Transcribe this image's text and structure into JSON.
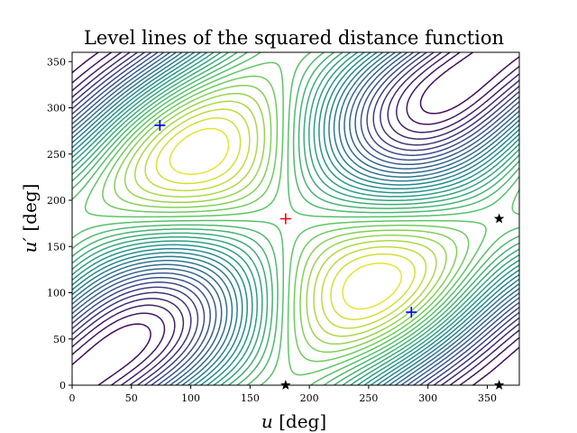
{
  "chart_data": {
    "type": "contour",
    "title": "Level lines of the squared distance function",
    "xlabel": {
      "var": "u",
      "unit": " [deg]"
    },
    "ylabel": {
      "var": "u′",
      "unit": " [deg]"
    },
    "xlim": [
      0,
      377
    ],
    "ylim": [
      0,
      360
    ],
    "xticks": [
      0,
      50,
      100,
      150,
      200,
      250,
      300,
      350
    ],
    "yticks": [
      0,
      50,
      100,
      150,
      200,
      250,
      300,
      350
    ],
    "colormap": [
      "#440154",
      "#3b528b",
      "#21918c",
      "#5ec962",
      "#fde725"
    ],
    "markers": [
      {
        "name": "maximum",
        "symbol": "plus",
        "color": "#ff0000",
        "x": 180,
        "y": 180
      },
      {
        "name": "minimum-upper-left",
        "symbol": "plus",
        "color": "#0000ff",
        "x": 74,
        "y": 281
      },
      {
        "name": "minimum-lower-right",
        "symbol": "plus",
        "color": "#0000ff",
        "x": 286,
        "y": 79
      },
      {
        "name": "saddle-right-mid",
        "symbol": "star",
        "color": "#000000",
        "x": 360,
        "y": 180
      },
      {
        "name": "saddle-right-bottom",
        "symbol": "star",
        "color": "#000000",
        "x": 360,
        "y": 0
      },
      {
        "name": "saddle-bottom-mid",
        "symbol": "star",
        "color": "#000000",
        "x": 180,
        "y": 0
      }
    ]
  }
}
